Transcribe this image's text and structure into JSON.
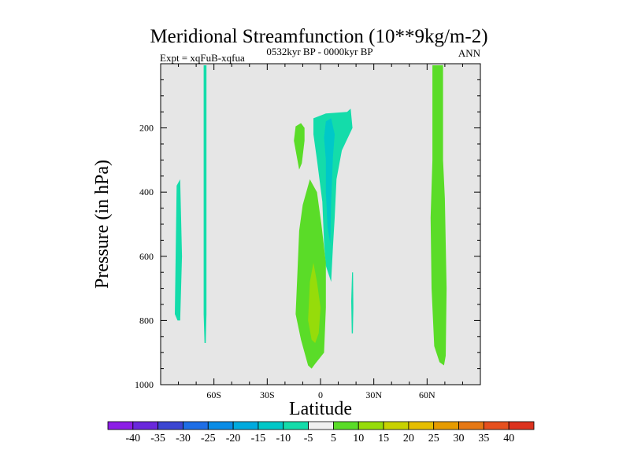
{
  "chart_data": {
    "type": "contour",
    "title": "Meridional Streamfunction (10**9kg/m-2)",
    "subtitle_left": "Expt = xqFuB-xqfua",
    "subtitle_center": "0532kyr BP - 0000kyr BP",
    "subtitle_right": "ANN",
    "xlabel": "Latitude",
    "ylabel": "Pressure (in hPa)",
    "xlim": [
      -90,
      90
    ],
    "ylim": [
      1000,
      0
    ],
    "xticks": [
      {
        "value": -60,
        "label": "60S"
      },
      {
        "value": -30,
        "label": "30S"
      },
      {
        "value": 0,
        "label": "0"
      },
      {
        "value": 30,
        "label": "30N"
      },
      {
        "value": 60,
        "label": "60N"
      }
    ],
    "yticks": [
      {
        "value": 200,
        "label": "200"
      },
      {
        "value": 400,
        "label": "400"
      },
      {
        "value": 600,
        "label": "600"
      },
      {
        "value": 800,
        "label": "800"
      },
      {
        "value": 1000,
        "label": "1000"
      }
    ],
    "background_color": "#e6e6e6",
    "colorbar": {
      "levels": [
        -40,
        -35,
        -30,
        -25,
        -20,
        -15,
        -10,
        -5,
        5,
        10,
        15,
        20,
        25,
        30,
        35,
        40
      ],
      "colors": [
        "#8c1ee6",
        "#6a28dc",
        "#3c46d2",
        "#1e6ee6",
        "#0a8ce6",
        "#00aade",
        "#00c8c8",
        "#14dcaa",
        "#f0f0f0",
        "#5adc28",
        "#96dc0a",
        "#c8d200",
        "#e6be00",
        "#e69b00",
        "#e67814",
        "#e6501e",
        "#dc321e"
      ]
    },
    "regions": [
      {
        "name": "neg-5-60S-column",
        "level": "-10 to -5",
        "color": "#14dcaa",
        "points": [
          [
            -65.8,
            5
          ],
          [
            -64.2,
            5
          ],
          [
            -64.2,
            780
          ],
          [
            -64.6,
            870
          ],
          [
            -65.3,
            870
          ],
          [
            -65.8,
            780
          ]
        ]
      },
      {
        "name": "neg-5-78S-strip",
        "level": "-10 to -5",
        "color": "#14dcaa",
        "points": [
          [
            -82,
            780
          ],
          [
            -81,
            380
          ],
          [
            -79,
            360
          ],
          [
            -78,
            600
          ],
          [
            -79,
            800
          ],
          [
            -80.5,
            800
          ]
        ]
      },
      {
        "name": "pos-5-15S-blob",
        "level": "5 to 10",
        "color": "#5adc28",
        "points": [
          [
            -15,
            240
          ],
          [
            -14,
            195
          ],
          [
            -11,
            185
          ],
          [
            -9,
            200
          ],
          [
            -9,
            240
          ],
          [
            -10.5,
            310
          ],
          [
            -12,
            330
          ]
        ]
      },
      {
        "name": "neg-5-upper-equatorial",
        "level": "-10 to -5",
        "color": "#14dcaa",
        "points": [
          [
            -4,
            170
          ],
          [
            3,
            155
          ],
          [
            15,
            150
          ],
          [
            17,
            140
          ],
          [
            18,
            200
          ],
          [
            12,
            270
          ],
          [
            9,
            360
          ],
          [
            8,
            480
          ],
          [
            7,
            570
          ],
          [
            6,
            680
          ],
          [
            3,
            630
          ],
          [
            2,
            560
          ],
          [
            1,
            430
          ],
          [
            -2,
            300
          ],
          [
            -4,
            220
          ]
        ]
      },
      {
        "name": "neg-10-upper-equatorial",
        "level": "-15 to -10",
        "color": "#00c8c8",
        "points": [
          [
            2,
            230
          ],
          [
            3,
            180
          ],
          [
            6,
            170
          ],
          [
            8,
            220
          ],
          [
            7,
            290
          ],
          [
            6,
            430
          ],
          [
            5.5,
            560
          ],
          [
            4,
            510
          ],
          [
            3,
            400
          ],
          [
            3,
            300
          ]
        ]
      },
      {
        "name": "pos-5-lower-equatorial",
        "level": "5 to 10",
        "color": "#5adc28",
        "points": [
          [
            -10,
            440
          ],
          [
            -6,
            360
          ],
          [
            -5,
            370
          ],
          [
            -2,
            400
          ],
          [
            0.5,
            500
          ],
          [
            3,
            620
          ],
          [
            3,
            760
          ],
          [
            2,
            900
          ],
          [
            -3,
            935
          ],
          [
            -5,
            950
          ],
          [
            -7,
            940
          ],
          [
            -11,
            860
          ],
          [
            -14,
            780
          ],
          [
            -13,
            650
          ],
          [
            -12,
            520
          ]
        ]
      },
      {
        "name": "pos-10-lower-equatorial",
        "level": "10 to 15",
        "color": "#96dc0a",
        "points": [
          [
            -7,
            800
          ],
          [
            -6,
            680
          ],
          [
            -4,
            620
          ],
          [
            -2,
            680
          ],
          [
            0,
            760
          ],
          [
            -1,
            840
          ],
          [
            -3,
            870
          ],
          [
            -5,
            860
          ]
        ]
      },
      {
        "name": "neg-5-18N-sliver",
        "level": "-10 to -5",
        "color": "#14dcaa",
        "points": [
          [
            17.3,
            740
          ],
          [
            17.8,
            650
          ],
          [
            18.3,
            650
          ],
          [
            18.5,
            760
          ],
          [
            18.2,
            840
          ],
          [
            17.6,
            840
          ]
        ]
      },
      {
        "name": "pos-5-65N-column",
        "level": "5 to 10",
        "color": "#5adc28",
        "points": [
          [
            63,
            5
          ],
          [
            69,
            5
          ],
          [
            69,
            300
          ],
          [
            70,
            420
          ],
          [
            71,
            700
          ],
          [
            70.5,
            910
          ],
          [
            69.5,
            940
          ],
          [
            67,
            930
          ],
          [
            64,
            880
          ],
          [
            62.5,
            700
          ],
          [
            62,
            480
          ],
          [
            63,
            300
          ]
        ]
      }
    ]
  }
}
